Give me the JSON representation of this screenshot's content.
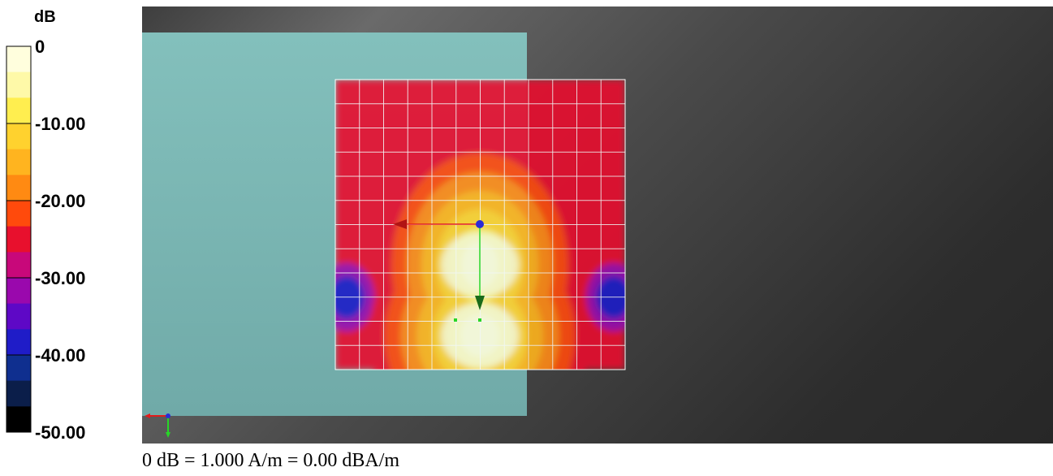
{
  "chart_data": {
    "type": "heatmap",
    "title": "",
    "colorbar": {
      "unit_label": "dB",
      "tick_labels": [
        "0",
        "-10.00",
        "-20.00",
        "-30.00",
        "-40.00",
        "-50.00"
      ],
      "range": [
        -50,
        0
      ],
      "bands": [
        {
          "color": "#fffedd",
          "from": 0,
          "to": -3.33
        },
        {
          "color": "#fef9a8",
          "from": -3.33,
          "to": -6.67
        },
        {
          "color": "#ffee4f",
          "from": -6.67,
          "to": -10
        },
        {
          "color": "#ffd22e",
          "from": -10,
          "to": -13.33
        },
        {
          "color": "#ffb41f",
          "from": -13.33,
          "to": -16.67
        },
        {
          "color": "#ff8a12",
          "from": -16.67,
          "to": -20
        },
        {
          "color": "#ff4a0c",
          "from": -20,
          "to": -23.33
        },
        {
          "color": "#e8102d",
          "from": -23.33,
          "to": -26.67
        },
        {
          "color": "#c8087a",
          "from": -26.67,
          "to": -30
        },
        {
          "color": "#9a08ad",
          "from": -30,
          "to": -33.33
        },
        {
          "color": "#5e08c6",
          "from": -33.33,
          "to": -36.67
        },
        {
          "color": "#1f1cc8",
          "from": -36.67,
          "to": -40
        },
        {
          "color": "#0f2f8f",
          "from": -40,
          "to": -43.33
        },
        {
          "color": "#0b1e4a",
          "from": -43.33,
          "to": -46.67
        },
        {
          "color": "#000000",
          "from": -46.67,
          "to": -50
        }
      ]
    },
    "grid": {
      "columns": 12,
      "rows": 12,
      "visible": true
    },
    "field_peaks_db": [
      0,
      0
    ],
    "field_lobe_edges_db": [
      -35,
      -35
    ],
    "colors": {
      "background_light": "#6a6a6a",
      "background_dark": "#272727",
      "phantom": "#7fbcb8",
      "grid_line": "#ffffff",
      "x_arrow": "#e21c1c",
      "y_arrow": "#27d627",
      "origin_point": "#2b2bd6"
    },
    "scale_note": "0 dB = 1.000 A/m = 0.00 dBA/m"
  }
}
